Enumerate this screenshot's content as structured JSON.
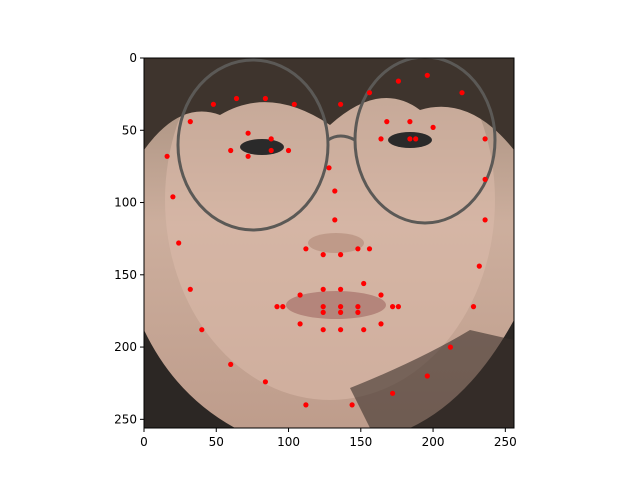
{
  "chart_data": {
    "type": "scatter",
    "title": "",
    "xlabel": "",
    "ylabel": "",
    "xlim": [
      0,
      256
    ],
    "ylim": [
      256,
      0
    ],
    "y_inverted": true,
    "grid": false,
    "xticks": [
      0,
      50,
      100,
      150,
      200,
      250
    ],
    "yticks": [
      0,
      50,
      100,
      150,
      200,
      250
    ],
    "background_image": "face-photo",
    "marker_color": "#ff0000",
    "series": [
      {
        "x": [
          16,
          20,
          24,
          32,
          40,
          60,
          84,
          112,
          144,
          172,
          196,
          212,
          228,
          232,
          236,
          236,
          236,
          48,
          64,
          84,
          104,
          136,
          156,
          176,
          196,
          220,
          60,
          72,
          88,
          100,
          88,
          72,
          168,
          184,
          200,
          188,
          164,
          184,
          32,
          128,
          132,
          132,
          112,
          124,
          136,
          148,
          156,
          92,
          108,
          124,
          136,
          152,
          164,
          176,
          164,
          152,
          136,
          124,
          108,
          96,
          124,
          136,
          148,
          172,
          148,
          136,
          124
        ],
        "y": [
          68,
          96,
          128,
          160,
          188,
          212,
          224,
          240,
          240,
          232,
          220,
          200,
          172,
          144,
          112,
          84,
          56,
          32,
          28,
          28,
          32,
          32,
          24,
          16,
          12,
          24,
          64,
          52,
          56,
          64,
          64,
          68,
          44,
          44,
          48,
          56,
          56,
          56,
          44,
          76,
          92,
          112,
          132,
          136,
          136,
          132,
          132,
          172,
          164,
          160,
          160,
          156,
          164,
          172,
          184,
          188,
          188,
          188,
          184,
          172,
          172,
          172,
          172,
          172,
          176,
          176,
          176
        ]
      }
    ]
  }
}
